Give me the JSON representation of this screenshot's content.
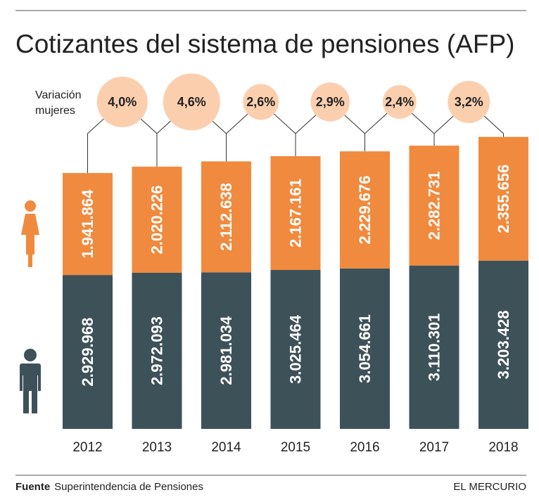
{
  "chart_data": {
    "type": "bar",
    "stacked": true,
    "title": "Cotizantes del sistema de pensiones (AFP)",
    "categories": [
      "2012",
      "2013",
      "2014",
      "2015",
      "2016",
      "2017",
      "2018"
    ],
    "series": [
      {
        "values": [
          2929968,
          2972093,
          2981034,
          3025464,
          3054661,
          3110301,
          3203428
        ],
        "labels": [
          "2.929.968",
          "2.972.093",
          "2.981.034",
          "3.025.464",
          "3.054.661",
          "3.110.301",
          "3.203.428"
        ],
        "color": "#3d5159",
        "icon": "man-icon"
      },
      {
        "values": [
          1941864,
          2020226,
          2112638,
          2167161,
          2229676,
          2282731,
          2355656
        ],
        "labels": [
          "1.941.864",
          "2.020.226",
          "2.112.638",
          "2.167.161",
          "2.229.676",
          "2.282.731",
          "2.355.656"
        ],
        "color": "#f08a3e",
        "icon": "woman-icon"
      }
    ],
    "variation": {
      "label_line1": "Variación",
      "label_line2": "mujeres",
      "values": [
        4.0,
        4.6,
        2.6,
        2.9,
        2.4,
        3.2
      ],
      "labels": [
        "4,0%",
        "4,6%",
        "2,6%",
        "2,9%",
        "2,4%",
        "3,2%"
      ],
      "color": "#fbcfae"
    }
  },
  "footer": {
    "source_label": "Fuente",
    "source_text": "Superintendencia de Pensiones",
    "brand": "EL MERCURIO"
  }
}
